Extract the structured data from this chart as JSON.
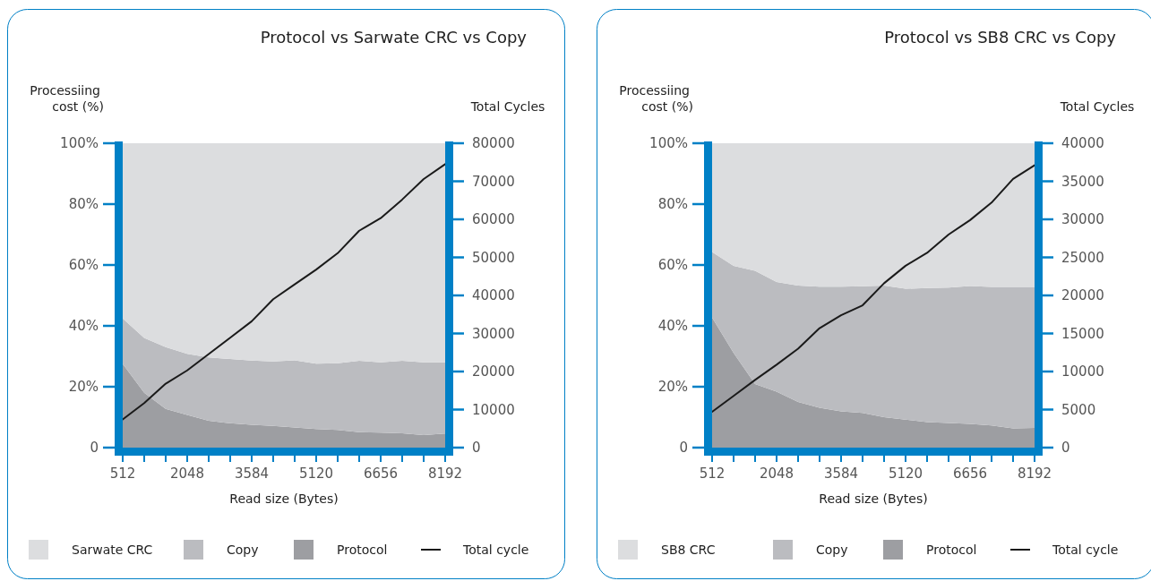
{
  "chart_data": [
    {
      "type": "area",
      "stacked": true,
      "title": "Protocol vs Sarwate CRC vs Copy",
      "xlabel": "Read size (Bytes)",
      "ylabel": "Processiing cost (%)",
      "y2label": "Total Cycles",
      "legend": "bottom",
      "x": [
        512,
        1024,
        1536,
        2048,
        2560,
        3072,
        3584,
        4096,
        4608,
        5120,
        5632,
        6144,
        6656,
        7168,
        7680,
        8192
      ],
      "xlim": [
        512,
        8192
      ],
      "xticks": [
        512,
        {
          "value": 1024,
          "label": null
        },
        {
          "value": 1536,
          "label": null
        },
        2048,
        {
          "value": 2560,
          "label": null
        },
        {
          "value": 3072,
          "label": null
        },
        3584,
        {
          "value": 4096,
          "label": null
        },
        {
          "value": 4608,
          "label": null
        },
        5120,
        {
          "value": 5632,
          "label": null
        },
        {
          "value": 6144,
          "label": null
        },
        6656,
        {
          "value": 7168,
          "label": null
        },
        {
          "value": 7680,
          "label": null
        },
        8192
      ],
      "ylim": [
        0,
        100
      ],
      "yticks": [
        0,
        {
          "value": 20,
          "label": "20%"
        },
        {
          "value": 40,
          "label": "40%"
        },
        {
          "value": 60,
          "label": "60%"
        },
        {
          "value": 80,
          "label": "80%"
        },
        {
          "value": 100,
          "label": "100%"
        }
      ],
      "y2lim": [
        0,
        80000
      ],
      "y2ticks": [
        0,
        10000,
        20000,
        30000,
        40000,
        50000,
        60000,
        70000,
        80000
      ],
      "series": [
        {
          "name": "Protocol",
          "color": "#9d9ea2",
          "values": [
            27.5,
            18,
            12.7,
            10.7,
            8.8,
            8.0,
            7.5,
            7.1,
            6.6,
            6.1,
            5.8,
            5.1,
            4.9,
            4.7,
            4.1,
            4.6
          ]
        },
        {
          "name": "Copy",
          "color": "#bbbcc0",
          "values": [
            14.9,
            18.0,
            20.3,
            20.1,
            20.8,
            21.1,
            21.1,
            21.2,
            22.1,
            21.5,
            21.9,
            23.4,
            23.1,
            23.8,
            23.9,
            23.4
          ]
        },
        {
          "name": "Sarwate CRC",
          "color": "#dcdddf",
          "values": [
            57.6,
            64.0,
            67.0,
            69.2,
            70.4,
            70.9,
            71.4,
            71.7,
            71.3,
            72.4,
            72.3,
            71.5,
            72.0,
            71.5,
            72.0,
            72.0
          ]
        },
        {
          "name": "Total cycle",
          "type": "line",
          "axis": "y2",
          "color": "#1a1a1a",
          "values": [
            7400,
            11700,
            16800,
            20300,
            24600,
            28900,
            33200,
            39000,
            42900,
            46800,
            51100,
            57000,
            60300,
            65200,
            70600,
            74500
          ]
        }
      ]
    },
    {
      "type": "area",
      "stacked": true,
      "title": "Protocol vs SB8 CRC vs Copy",
      "xlabel": "Read size (Bytes)",
      "ylabel": "Processiing cost (%)",
      "y2label": "Total Cycles",
      "legend": "bottom",
      "x": [
        512,
        1024,
        1536,
        2048,
        2560,
        3072,
        3584,
        4096,
        4608,
        5120,
        5632,
        6144,
        6656,
        7168,
        7680,
        8192
      ],
      "xlim": [
        512,
        8192
      ],
      "xticks": [
        512,
        {
          "value": 1024,
          "label": null
        },
        {
          "value": 1536,
          "label": null
        },
        2048,
        {
          "value": 2560,
          "label": null
        },
        {
          "value": 3072,
          "label": null
        },
        3584,
        {
          "value": 4096,
          "label": null
        },
        {
          "value": 4608,
          "label": null
        },
        5120,
        {
          "value": 5632,
          "label": null
        },
        {
          "value": 6144,
          "label": null
        },
        6656,
        {
          "value": 7168,
          "label": null
        },
        {
          "value": 7680,
          "label": null
        },
        8192
      ],
      "ylim": [
        0,
        100
      ],
      "yticks": [
        0,
        {
          "value": 20,
          "label": "20%"
        },
        {
          "value": 40,
          "label": "40%"
        },
        {
          "value": 60,
          "label": "60%"
        },
        {
          "value": 80,
          "label": "80%"
        },
        {
          "value": 100,
          "label": "100%"
        }
      ],
      "y2lim": [
        0,
        40000
      ],
      "y2ticks": [
        0,
        5000,
        10000,
        15000,
        20000,
        25000,
        30000,
        35000,
        40000
      ],
      "series": [
        {
          "name": "Protocol",
          "color": "#9d9ea2",
          "values": [
            42.7,
            31.1,
            20.9,
            18.4,
            15.0,
            13.1,
            11.9,
            11.4,
            10.0,
            9.2,
            8.4,
            8.1,
            7.8,
            7.3,
            6.3,
            6.5
          ]
        },
        {
          "name": "Copy",
          "color": "#bbbcc0",
          "values": [
            21.6,
            28.6,
            37.2,
            36.0,
            38.2,
            39.8,
            41.0,
            41.6,
            43.2,
            43.0,
            44.0,
            44.5,
            45.3,
            45.5,
            46.5,
            46.3
          ]
        },
        {
          "name": "SB8 CRC",
          "color": "#dcdddf",
          "values": [
            35.7,
            40.3,
            41.9,
            45.6,
            46.8,
            47.1,
            47.1,
            47.0,
            46.8,
            47.8,
            47.6,
            47.4,
            46.9,
            47.2,
            47.2,
            47.2
          ]
        },
        {
          "name": "Total cycle",
          "type": "line",
          "axis": "y2",
          "color": "#1a1a1a",
          "values": [
            4700,
            6800,
            8900,
            10900,
            13000,
            15700,
            17400,
            18700,
            21600,
            23900,
            25600,
            28000,
            29900,
            32200,
            35300,
            37100
          ]
        }
      ]
    }
  ]
}
